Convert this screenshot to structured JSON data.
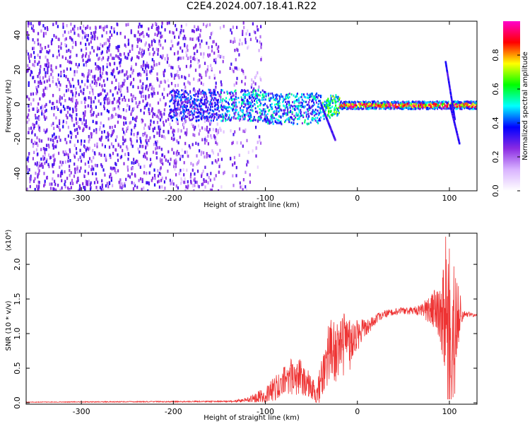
{
  "title": "C2E4.2024.007.18.41.R22",
  "chart_data": [
    {
      "type": "heatmap",
      "xlabel": "Height of straight line (km)",
      "ylabel": "Frequency (Hz)",
      "xlim": [
        -360,
        130
      ],
      "ylim": [
        -50,
        48
      ],
      "xticks": [
        -300,
        -200,
        -100,
        0,
        100
      ],
      "xtick_labels": [
        "-300",
        "-200",
        "-100",
        "0",
        "100"
      ],
      "yticks": [
        -40,
        -20,
        0,
        20,
        40
      ],
      "ytick_labels": [
        "-40",
        "-20",
        "0",
        "20",
        "40"
      ],
      "colorbar": {
        "label": "Normalized spectral amplitude",
        "range": [
          0,
          1
        ],
        "ticks": [
          0,
          0.2,
          0.4,
          0.6,
          0.8
        ],
        "tick_labels": [
          "0.0",
          "0.2",
          "0.4",
          "0.6",
          "0.8"
        ],
        "colors": [
          "#ffffff",
          "#d9b3ff",
          "#8a2be2",
          "#0000ff",
          "#00ffff",
          "#00ff00",
          "#ffff00",
          "#ff0000",
          "#ff00cc"
        ]
      },
      "features": [
        {
          "name": "broadband noise",
          "x_range": [
            -360,
            -105
          ],
          "freq_range": [
            -50,
            48
          ]
        },
        {
          "name": "signal band",
          "x_range": [
            -200,
            130
          ],
          "center_freq": 0
        }
      ]
    },
    {
      "type": "line",
      "xlabel": "Height of straight line (km)",
      "ylabel": "SNR (10 * v/v)",
      "y_multiplier": "(x10⁴)",
      "xlim": [
        -360,
        130
      ],
      "ylim": [
        -0.02,
        2.45
      ],
      "xticks": [
        -300,
        -200,
        -100,
        0,
        100
      ],
      "xtick_labels": [
        "-300",
        "-200",
        "-100",
        "0",
        "100"
      ],
      "yticks": [
        0,
        0.5,
        1.0,
        1.5,
        2.0
      ],
      "ytick_labels": [
        "0.0",
        "0.5",
        "1.0",
        "1.5",
        "2.0"
      ],
      "color": "#ee3333",
      "envelope": {
        "x": [
          -360,
          -140,
          -120,
          -100,
          -85,
          -75,
          -65,
          -55,
          -45,
          -40,
          -35,
          -30,
          -25,
          -20,
          -15,
          -10,
          -5,
          0,
          10,
          20,
          30,
          40,
          50,
          60,
          70,
          80,
          85,
          90,
          95,
          100,
          105,
          110,
          115,
          130
        ],
        "y": [
          0.01,
          0.02,
          0.04,
          0.12,
          0.25,
          0.35,
          0.4,
          0.3,
          0.15,
          0.25,
          0.5,
          0.7,
          0.75,
          0.7,
          0.8,
          0.8,
          0.9,
          1.0,
          1.1,
          1.2,
          1.28,
          1.32,
          1.33,
          1.33,
          1.34,
          1.35,
          1.35,
          1.3,
          1.2,
          1.1,
          1.0,
          1.2,
          1.28,
          1.27
        ],
        "spread": [
          0.005,
          0.01,
          0.03,
          0.12,
          0.2,
          0.25,
          0.3,
          0.2,
          0.15,
          0.3,
          0.45,
          0.5,
          0.5,
          0.45,
          0.5,
          0.4,
          0.3,
          0.25,
          0.12,
          0.08,
          0.06,
          0.05,
          0.05,
          0.06,
          0.08,
          0.25,
          0.3,
          0.4,
          0.9,
          1.2,
          1.0,
          0.5,
          0.05,
          0.02
        ]
      }
    }
  ]
}
